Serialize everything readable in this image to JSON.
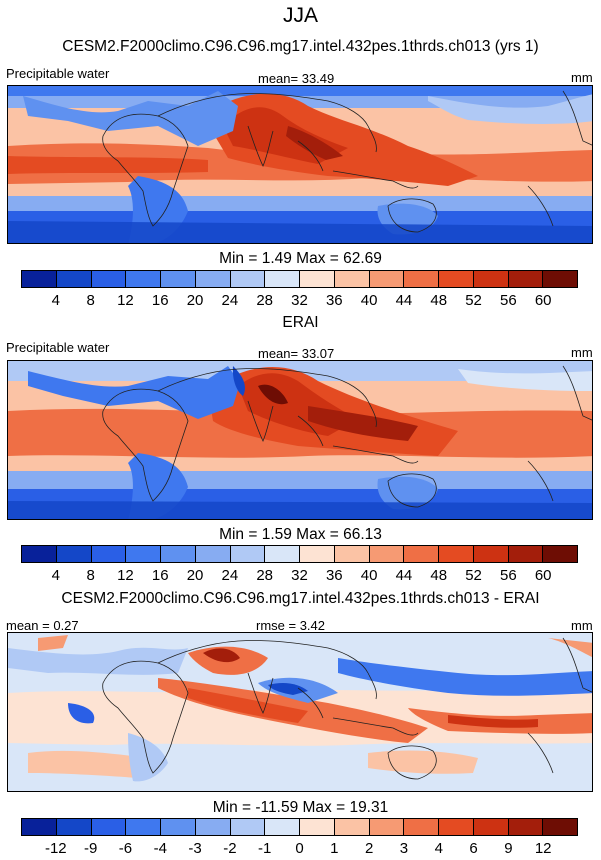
{
  "header": {
    "season": "JJA"
  },
  "panels": [
    {
      "id": "model",
      "title": "CESM2.F2000climo.C96.C96.mg17.intel.432pes.1thrds.ch013 (yrs 1)",
      "left_label": "Precipitable water",
      "center_label": "mean=  33.49",
      "right_label": "mm",
      "minmax": "Min =   1.49 Max =  62.69",
      "levels": [
        "4",
        "8",
        "12",
        "16",
        "20",
        "24",
        "28",
        "32",
        "36",
        "40",
        "44",
        "48",
        "52",
        "56",
        "60"
      ]
    },
    {
      "id": "obs",
      "title": "ERAI",
      "left_label": "Precipitable water",
      "center_label": "mean=  33.07",
      "right_label": "mm",
      "minmax": "Min =   1.59 Max =  66.13",
      "levels": [
        "4",
        "8",
        "12",
        "16",
        "20",
        "24",
        "28",
        "32",
        "36",
        "40",
        "44",
        "48",
        "52",
        "56",
        "60"
      ]
    },
    {
      "id": "diff",
      "title": "CESM2.F2000climo.C96.C96.mg17.intel.432pes.1thrds.ch013 - ERAI",
      "left_label": "mean =   0.27",
      "center_label": "rmse =   3.42",
      "right_label": "mm",
      "minmax": "Min = -11.59 Max =  19.31",
      "levels": [
        "-12",
        "-9",
        "-6",
        "-4",
        "-3",
        "-2",
        "-1",
        "0",
        "1",
        "2",
        "3",
        "4",
        "6",
        "9",
        "12"
      ]
    }
  ],
  "colors": {
    "palette": [
      "#08219a",
      "#1447c8",
      "#2a5fe6",
      "#3f78ef",
      "#5f91f0",
      "#87acf2",
      "#b0c9f5",
      "#d9e6f8",
      "#fde3d3",
      "#fbc3a5",
      "#f69a73",
      "#ef6f45",
      "#e44b22",
      "#cd3212",
      "#a31e0b",
      "#6e0d04"
    ],
    "continent_line": "#222222"
  },
  "chart_data": [
    {
      "type": "heatmap",
      "title": "CESM2.F2000climo.C96.C96.mg17.intel.432pes.1thrds.ch013 (yrs 1)",
      "variable": "Precipitable water",
      "units": "mm",
      "mean": 33.49,
      "min": 1.49,
      "max": 62.69,
      "contour_levels": [
        4,
        8,
        12,
        16,
        20,
        24,
        28,
        32,
        36,
        40,
        44,
        48,
        52,
        56,
        60
      ]
    },
    {
      "type": "heatmap",
      "title": "ERAI",
      "variable": "Precipitable water",
      "units": "mm",
      "mean": 33.07,
      "min": 1.59,
      "max": 66.13,
      "contour_levels": [
        4,
        8,
        12,
        16,
        20,
        24,
        28,
        32,
        36,
        40,
        44,
        48,
        52,
        56,
        60
      ]
    },
    {
      "type": "heatmap",
      "title": "CESM2.F2000climo.C96.C96.mg17.intel.432pes.1thrds.ch013 - ERAI",
      "units": "mm",
      "mean": 0.27,
      "rmse": 3.42,
      "min": -11.59,
      "max": 19.31,
      "contour_levels": [
        -12,
        -9,
        -6,
        -4,
        -3,
        -2,
        -1,
        0,
        1,
        2,
        3,
        4,
        6,
        9,
        12
      ]
    }
  ]
}
